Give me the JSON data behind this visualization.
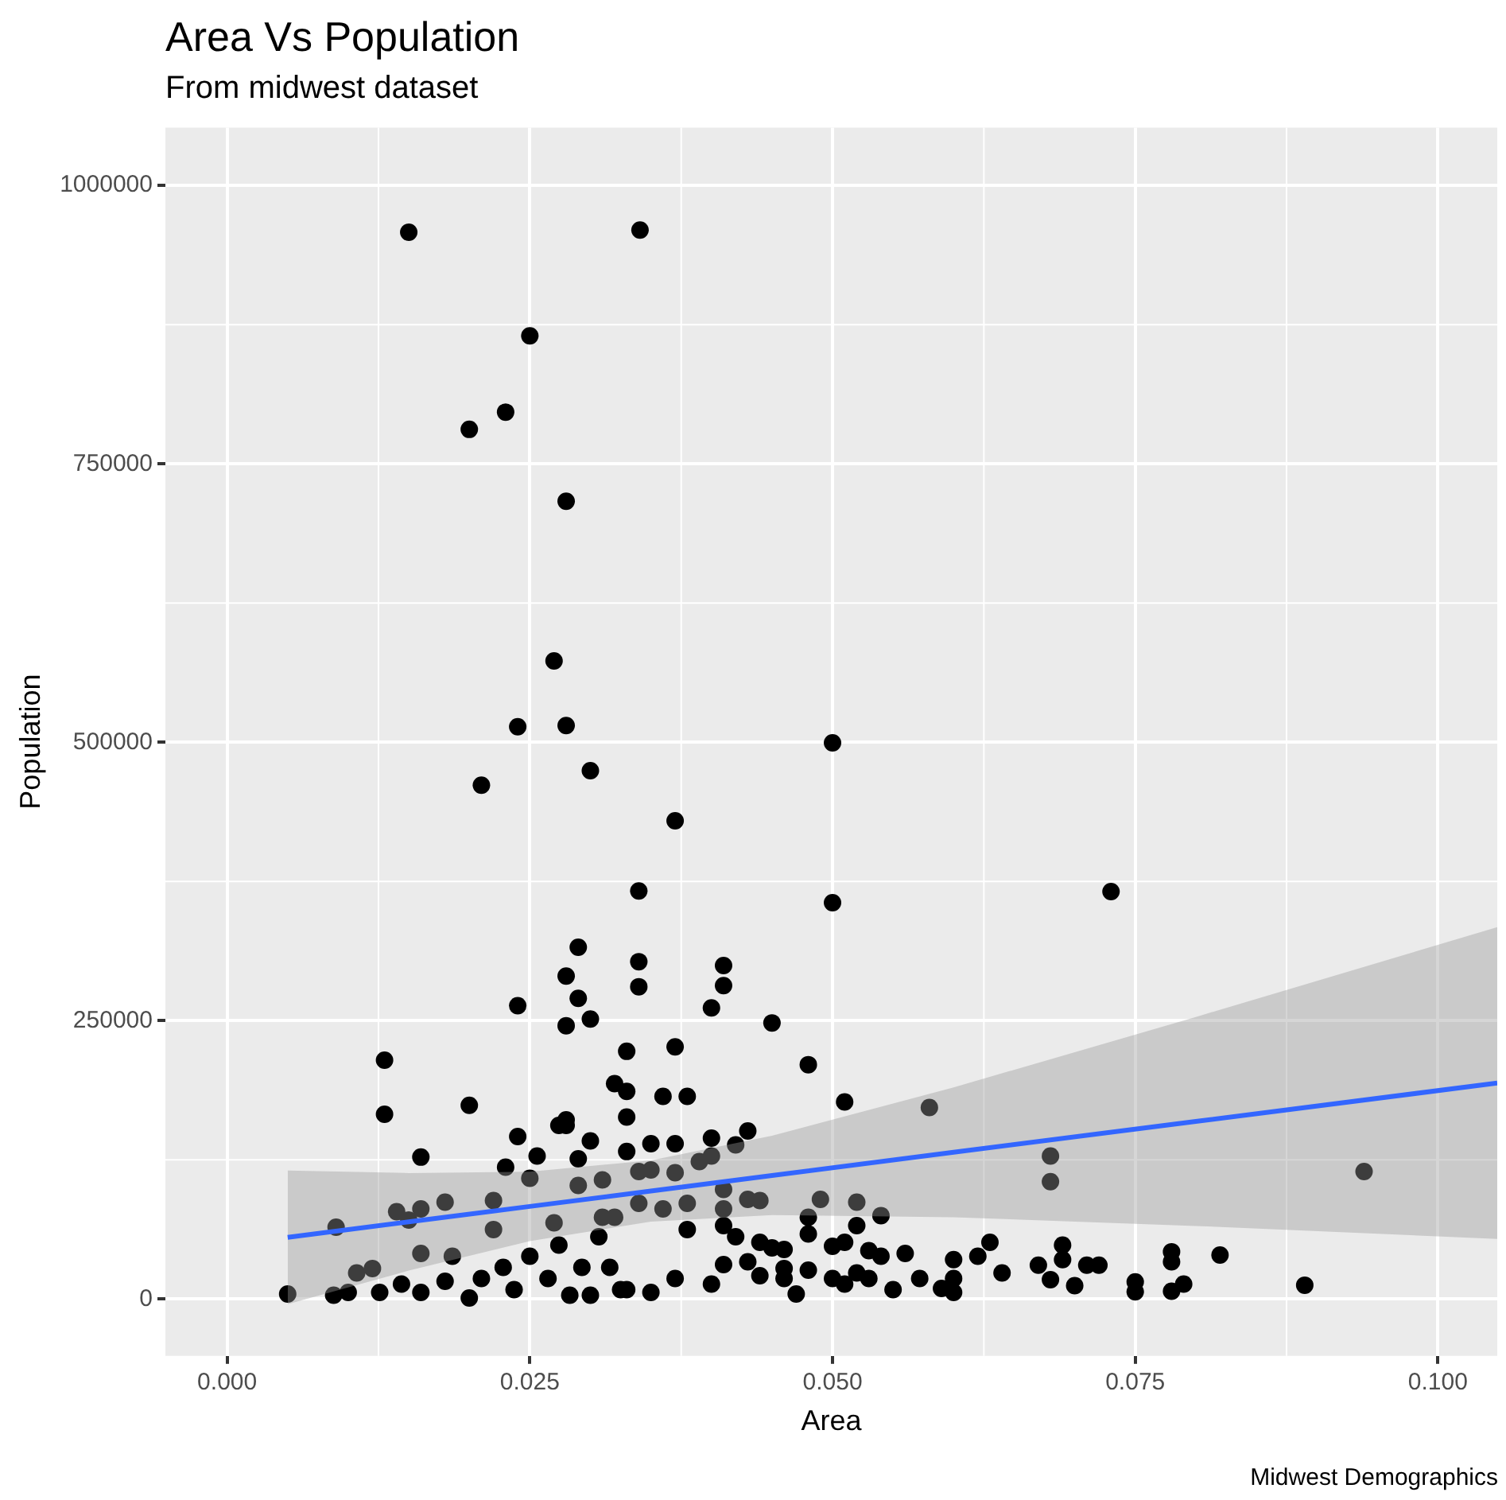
{
  "chart_data": {
    "type": "scatter",
    "title": "Area Vs Population",
    "subtitle": "From midwest dataset",
    "xlabel": "Area",
    "ylabel": "Population",
    "annotations": [
      "Midwest Demographics"
    ],
    "xlim": [
      -0.0051,
      0.1049
    ],
    "ylim": [
      -51000,
      1052000
    ],
    "xticks": [
      {
        "value": 0,
        "label": "0.000"
      },
      {
        "value": 0.025,
        "label": "0.025"
      },
      {
        "value": 0.05,
        "label": "0.050"
      },
      {
        "value": 0.075,
        "label": "0.075"
      },
      {
        "value": 0.1,
        "label": "0.100"
      }
    ],
    "yticks": [
      0,
      250000,
      500000,
      750000,
      1000000
    ],
    "grid": true,
    "legend": false,
    "series": [
      {
        "marker": "circle",
        "color": "#000000",
        "x": [
          0.015,
          0.0341,
          0.025,
          0.023,
          0.02,
          0.028,
          0.027,
          0.024,
          0.028,
          0.05,
          0.021,
          0.03,
          0.037,
          0.034,
          0.05,
          0.029,
          0.034,
          0.041,
          0.028,
          0.034,
          0.041,
          0.029,
          0.024,
          0.04,
          0.03,
          0.028,
          0.045,
          0.013,
          0.033,
          0.037,
          0.048,
          0.032,
          0.033,
          0.036,
          0.038,
          0.02,
          0.051,
          0.013,
          0.028,
          0.033,
          0.073,
          0.058,
          0.068,
          0.068,
          0.0939,
          0.063,
          0.062,
          0.06,
          0.06,
          0.059,
          0.06,
          0.064,
          0.067,
          0.068,
          0.069,
          0.069,
          0.07,
          0.071,
          0.072,
          0.075,
          0.075,
          0.078,
          0.078,
          0.078,
          0.079,
          0.082,
          0.089,
          0.0572,
          0.043,
          0.042,
          0.04,
          0.037,
          0.035,
          0.033,
          0.03,
          0.028,
          0.029,
          0.039,
          0.04,
          0.037,
          0.034,
          0.035,
          0.031,
          0.029,
          0.041,
          0.043,
          0.044,
          0.049,
          0.052,
          0.054,
          0.048,
          0.034,
          0.036,
          0.038,
          0.041,
          0.031,
          0.041,
          0.052,
          0.048,
          0.042,
          0.038,
          0.044,
          0.045,
          0.046,
          0.05,
          0.051,
          0.053,
          0.054,
          0.056,
          0.041,
          0.043,
          0.044,
          0.046,
          0.046,
          0.048,
          0.05,
          0.051,
          0.052,
          0.053,
          0.055,
          0.047,
          0.04,
          0.037,
          0.03,
          0.035,
          0.033,
          0.016,
          0.005,
          0.009,
          0.014,
          0.016,
          0.015,
          0.018,
          0.022,
          0.022,
          0.024,
          0.0256,
          0.0274,
          0.023,
          0.025,
          0.027,
          0.016,
          0.0186,
          0.0107,
          0.012,
          0.0088,
          0.01,
          0.0126,
          0.0144,
          0.016,
          0.018,
          0.02,
          0.021,
          0.0228,
          0.0237,
          0.025,
          0.0265,
          0.0274,
          0.0283,
          0.0293,
          0.0307,
          0.0316,
          0.0325,
          0.032
        ],
        "values": [
          958000,
          960000,
          865000,
          796500,
          781000,
          716500,
          573000,
          514000,
          515000,
          499500,
          461500,
          474500,
          429500,
          366500,
          356000,
          316000,
          303000,
          299500,
          290000,
          280500,
          281500,
          270000,
          263500,
          261500,
          251500,
          245500,
          248000,
          214500,
          222500,
          226500,
          210500,
          193500,
          186500,
          182000,
          182000,
          174000,
          177000,
          166000,
          161000,
          163500,
          366000,
          172000,
          128500,
          105500,
          114500,
          51000,
          38500,
          35500,
          18500,
          9500,
          6000,
          23500,
          30500,
          17500,
          48500,
          35500,
          12000,
          30500,
          30500,
          15500,
          6500,
          42500,
          33500,
          7000,
          13500,
          39500,
          12500,
          18500,
          151000,
          138500,
          144500,
          139500,
          139500,
          132500,
          142000,
          156000,
          126000,
          123500,
          128500,
          113500,
          114500,
          116000,
          107000,
          102000,
          98500,
          89500,
          88500,
          89500,
          87000,
          75000,
          73500,
          86000,
          81000,
          86000,
          81000,
          73500,
          66000,
          66000,
          58500,
          56000,
          62500,
          51000,
          46000,
          44500,
          47500,
          51000,
          43500,
          38500,
          41000,
          31000,
          33500,
          21000,
          27500,
          18500,
          26000,
          18500,
          13500,
          23500,
          18500,
          8500,
          4500,
          13500,
          18500,
          3500,
          6000,
          8500,
          127500,
          4500,
          64500,
          78500,
          81000,
          71000,
          87000,
          88500,
          62500,
          146000,
          128500,
          156000,
          118500,
          108500,
          68500,
          41000,
          38500,
          23500,
          27500,
          3500,
          6000,
          6000,
          13500,
          6000,
          16000,
          1000,
          18500,
          28500,
          8500,
          38500,
          18500,
          48500,
          3500,
          28500,
          56000,
          28500,
          8500,
          73500
        ]
      },
      {
        "type": "line",
        "color": "#3366ff",
        "x": [
          0.005,
          0.015,
          0.025,
          0.035,
          0.045,
          0.06,
          0.08,
          0.1049
        ],
        "values": [
          55500,
          69400,
          83200,
          97100,
          111000,
          131800,
          159500,
          194000
        ],
        "lower": [
          -4500,
          25600,
          52000,
          69600,
          75400,
          73500,
          65700,
          54000
        ],
        "upper": [
          115500,
          113200,
          114400,
          124600,
          146600,
          190100,
          253300,
          334000
        ]
      }
    ]
  }
}
